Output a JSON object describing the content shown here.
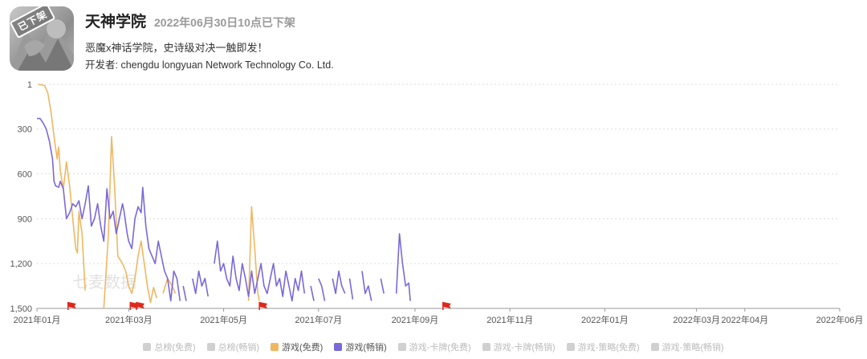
{
  "app": {
    "name": "天神学院",
    "status": "2022年06月30日10点已下架",
    "slogan": "恶魔x神话学院，史诗级对决一触即发！",
    "developer": "开发者: chengdu longyuan Network Technology Co. Ltd.",
    "icon_stamp": "已下架"
  },
  "watermark": "七麦数据",
  "legend": [
    {
      "label": "总榜(免费)",
      "active": false,
      "color": "#d0d0d0"
    },
    {
      "label": "总榜(畅销)",
      "active": false,
      "color": "#d0d0d0"
    },
    {
      "label": "游戏(免费)",
      "active": true,
      "color": "#f0b760"
    },
    {
      "label": "游戏(畅销)",
      "active": true,
      "color": "#7b68d9"
    },
    {
      "label": "游戏-卡牌(免费)",
      "active": false,
      "color": "#d0d0d0"
    },
    {
      "label": "游戏-卡牌(畅销)",
      "active": false,
      "color": "#d0d0d0"
    },
    {
      "label": "游戏-策略(免费)",
      "active": false,
      "color": "#d0d0d0"
    },
    {
      "label": "游戏-策略(畅销)",
      "active": false,
      "color": "#d0d0d0"
    }
  ],
  "chart_data": {
    "type": "line",
    "y_inverted": true,
    "ylim": [
      1,
      1500
    ],
    "y_ticks": [
      "1",
      "300",
      "600",
      "900",
      "1,200",
      "1,500"
    ],
    "y_tick_values": [
      1,
      300,
      600,
      900,
      1200,
      1500
    ],
    "x_range": [
      "2021-01-01",
      "2022-06-01"
    ],
    "x_ticks": [
      "2021年01月",
      "2021年03月",
      "2021年05月",
      "2021年07月",
      "2021年09月",
      "2021年11月",
      "2022年01月",
      "2022年03月",
      "2022年04月",
      "2022年06月"
    ],
    "x_tick_dates": [
      "2021-01-01",
      "2021-03-01",
      "2021-05-01",
      "2021-07-01",
      "2021-09-01",
      "2021-11-01",
      "2022-01-01",
      "2022-03-01",
      "2022-04-01",
      "2022-06-01"
    ],
    "grid": true,
    "colors": {
      "free": "#f0b760",
      "grossing": "#7b68d9",
      "flag": "#e0271b",
      "grid": "#dddddd",
      "axis": "#999999"
    },
    "flag_dates": [
      "2021-01-21",
      "2021-03-02",
      "2021-03-06",
      "2021-05-24",
      "2021-09-19"
    ],
    "series": [
      {
        "name": "游戏(免费)",
        "segments": [
          [
            [
              "2021-01-02",
              1
            ],
            [
              "2021-01-04",
              5
            ],
            [
              "2021-01-06",
              10
            ],
            [
              "2021-01-08",
              60
            ],
            [
              "2021-01-10",
              180
            ],
            [
              "2021-01-12",
              350
            ],
            [
              "2021-01-14",
              500
            ],
            [
              "2021-01-15",
              420
            ],
            [
              "2021-01-16",
              580
            ],
            [
              "2021-01-18",
              700
            ],
            [
              "2021-01-20",
              520
            ],
            [
              "2021-01-22",
              680
            ],
            [
              "2021-01-24",
              900
            ],
            [
              "2021-01-26",
              1100
            ],
            [
              "2021-01-27",
              1130
            ],
            [
              "2021-01-28",
              850
            ],
            [
              "2021-01-30",
              1000
            ],
            [
              "2021-02-01",
              1380
            ]
          ],
          [
            [
              "2021-02-13",
              1500
            ],
            [
              "2021-02-16",
              1000
            ],
            [
              "2021-02-18",
              350
            ],
            [
              "2021-02-20",
              700
            ],
            [
              "2021-02-22",
              1150
            ],
            [
              "2021-02-25",
              1200
            ],
            [
              "2021-02-27",
              1250
            ],
            [
              "2021-03-01",
              1350
            ],
            [
              "2021-03-03",
              1400
            ],
            [
              "2021-03-05",
              1300
            ],
            [
              "2021-03-07",
              1150
            ],
            [
              "2021-03-09",
              1050
            ],
            [
              "2021-03-11",
              1200
            ],
            [
              "2021-03-13",
              1350
            ],
            [
              "2021-03-15",
              1460
            ],
            [
              "2021-03-17",
              1360
            ],
            [
              "2021-03-19",
              1430
            ]
          ],
          [
            [
              "2021-03-23",
              1400
            ],
            [
              "2021-03-26",
              1300
            ],
            [
              "2021-03-29",
              1350
            ],
            [
              "2021-03-31",
              1400
            ]
          ],
          [
            [
              "2021-05-17",
              1450
            ],
            [
              "2021-05-19",
              820
            ],
            [
              "2021-05-21",
              1100
            ],
            [
              "2021-05-23",
              1400
            ],
            [
              "2021-05-24",
              1450
            ]
          ]
        ]
      },
      {
        "name": "游戏(畅销)",
        "segments": [
          [
            [
              "2021-01-01",
              230
            ],
            [
              "2021-01-03",
              230
            ],
            [
              "2021-01-05",
              260
            ],
            [
              "2021-01-07",
              300
            ],
            [
              "2021-01-09",
              380
            ],
            [
              "2021-01-11",
              500
            ],
            [
              "2021-01-12",
              650
            ],
            [
              "2021-01-13",
              680
            ],
            [
              "2021-01-15",
              690
            ],
            [
              "2021-01-16",
              650
            ],
            [
              "2021-01-18",
              700
            ],
            [
              "2021-01-20",
              900
            ],
            [
              "2021-01-22",
              860
            ],
            [
              "2021-01-24",
              800
            ],
            [
              "2021-01-26",
              820
            ],
            [
              "2021-01-28",
              780
            ],
            [
              "2021-01-30",
              900
            ],
            [
              "2021-02-01",
              800
            ],
            [
              "2021-02-03",
              680
            ],
            [
              "2021-02-05",
              950
            ],
            [
              "2021-02-07",
              900
            ],
            [
              "2021-02-09",
              800
            ],
            [
              "2021-02-11",
              950
            ],
            [
              "2021-02-13",
              1050
            ],
            [
              "2021-02-15",
              700
            ],
            [
              "2021-02-17",
              900
            ],
            [
              "2021-02-19",
              850
            ],
            [
              "2021-02-21",
              1000
            ],
            [
              "2021-02-23",
              900
            ],
            [
              "2021-02-25",
              800
            ],
            [
              "2021-02-26",
              850
            ],
            [
              "2021-02-28",
              1000
            ],
            [
              "2021-03-01",
              1050
            ],
            [
              "2021-03-03",
              1100
            ],
            [
              "2021-03-05",
              900
            ],
            [
              "2021-03-07",
              820
            ],
            [
              "2021-03-09",
              860
            ],
            [
              "2021-03-10",
              690
            ],
            [
              "2021-03-12",
              950
            ],
            [
              "2021-03-14",
              1100
            ],
            [
              "2021-03-16",
              1150
            ],
            [
              "2021-03-18",
              1200
            ],
            [
              "2021-03-20",
              1050
            ],
            [
              "2021-03-22",
              1150
            ],
            [
              "2021-03-24",
              1250
            ],
            [
              "2021-03-26",
              1300
            ],
            [
              "2021-03-28",
              1450
            ],
            [
              "2021-03-30",
              1250
            ],
            [
              "2021-04-01",
              1300
            ],
            [
              "2021-04-03",
              1450
            ]
          ],
          [
            [
              "2021-04-05",
              1350
            ],
            [
              "2021-04-07",
              1450
            ]
          ],
          [
            [
              "2021-04-11",
              1300
            ],
            [
              "2021-04-13",
              1400
            ],
            [
              "2021-04-15",
              1250
            ],
            [
              "2021-04-17",
              1350
            ],
            [
              "2021-04-19",
              1300
            ],
            [
              "2021-04-21",
              1420
            ]
          ],
          [
            [
              "2021-04-25",
              1200
            ],
            [
              "2021-04-27",
              1050
            ],
            [
              "2021-04-29",
              1250
            ],
            [
              "2021-05-01",
              1200
            ],
            [
              "2021-05-03",
              1300
            ],
            [
              "2021-05-05",
              1350
            ],
            [
              "2021-05-07",
              1150
            ],
            [
              "2021-05-09",
              1300
            ],
            [
              "2021-05-11",
              1380
            ],
            [
              "2021-05-13",
              1200
            ],
            [
              "2021-05-15",
              1300
            ],
            [
              "2021-05-17",
              1420
            ],
            [
              "2021-05-19",
              1250
            ],
            [
              "2021-05-21",
              1400
            ],
            [
              "2021-05-23",
              1300
            ],
            [
              "2021-05-25",
              1200
            ],
            [
              "2021-05-27",
              1350
            ],
            [
              "2021-05-29",
              1400
            ],
            [
              "2021-05-31",
              1300
            ],
            [
              "2021-06-02",
              1200
            ],
            [
              "2021-06-04",
              1350
            ],
            [
              "2021-06-06",
              1300
            ],
            [
              "2021-06-08",
              1420
            ],
            [
              "2021-06-10",
              1250
            ],
            [
              "2021-06-12",
              1350
            ],
            [
              "2021-06-14",
              1450
            ],
            [
              "2021-06-16",
              1300
            ],
            [
              "2021-06-18",
              1380
            ],
            [
              "2021-06-20",
              1250
            ],
            [
              "2021-06-22",
              1400
            ]
          ],
          [
            [
              "2021-06-26",
              1350
            ],
            [
              "2021-06-28",
              1450
            ]
          ],
          [
            [
              "2021-07-01",
              1300
            ],
            [
              "2021-07-03",
              1350
            ],
            [
              "2021-07-05",
              1450
            ]
          ],
          [
            [
              "2021-07-10",
              1300
            ],
            [
              "2021-07-12",
              1400
            ],
            [
              "2021-07-14",
              1250
            ],
            [
              "2021-07-16",
              1350
            ],
            [
              "2021-07-18",
              1400
            ]
          ],
          [
            [
              "2021-07-21",
              1300
            ],
            [
              "2021-07-23",
              1440
            ]
          ],
          [
            [
              "2021-07-29",
              1250
            ],
            [
              "2021-07-31",
              1400
            ],
            [
              "2021-08-02",
              1350
            ],
            [
              "2021-08-04",
              1450
            ]
          ],
          [
            [
              "2021-08-10",
              1300
            ],
            [
              "2021-08-12",
              1400
            ]
          ],
          [
            [
              "2021-08-20",
              1400
            ],
            [
              "2021-08-22",
              1000
            ],
            [
              "2021-08-24",
              1200
            ],
            [
              "2021-08-26",
              1350
            ],
            [
              "2021-08-28",
              1330
            ],
            [
              "2021-08-29",
              1450
            ]
          ]
        ]
      }
    ]
  }
}
